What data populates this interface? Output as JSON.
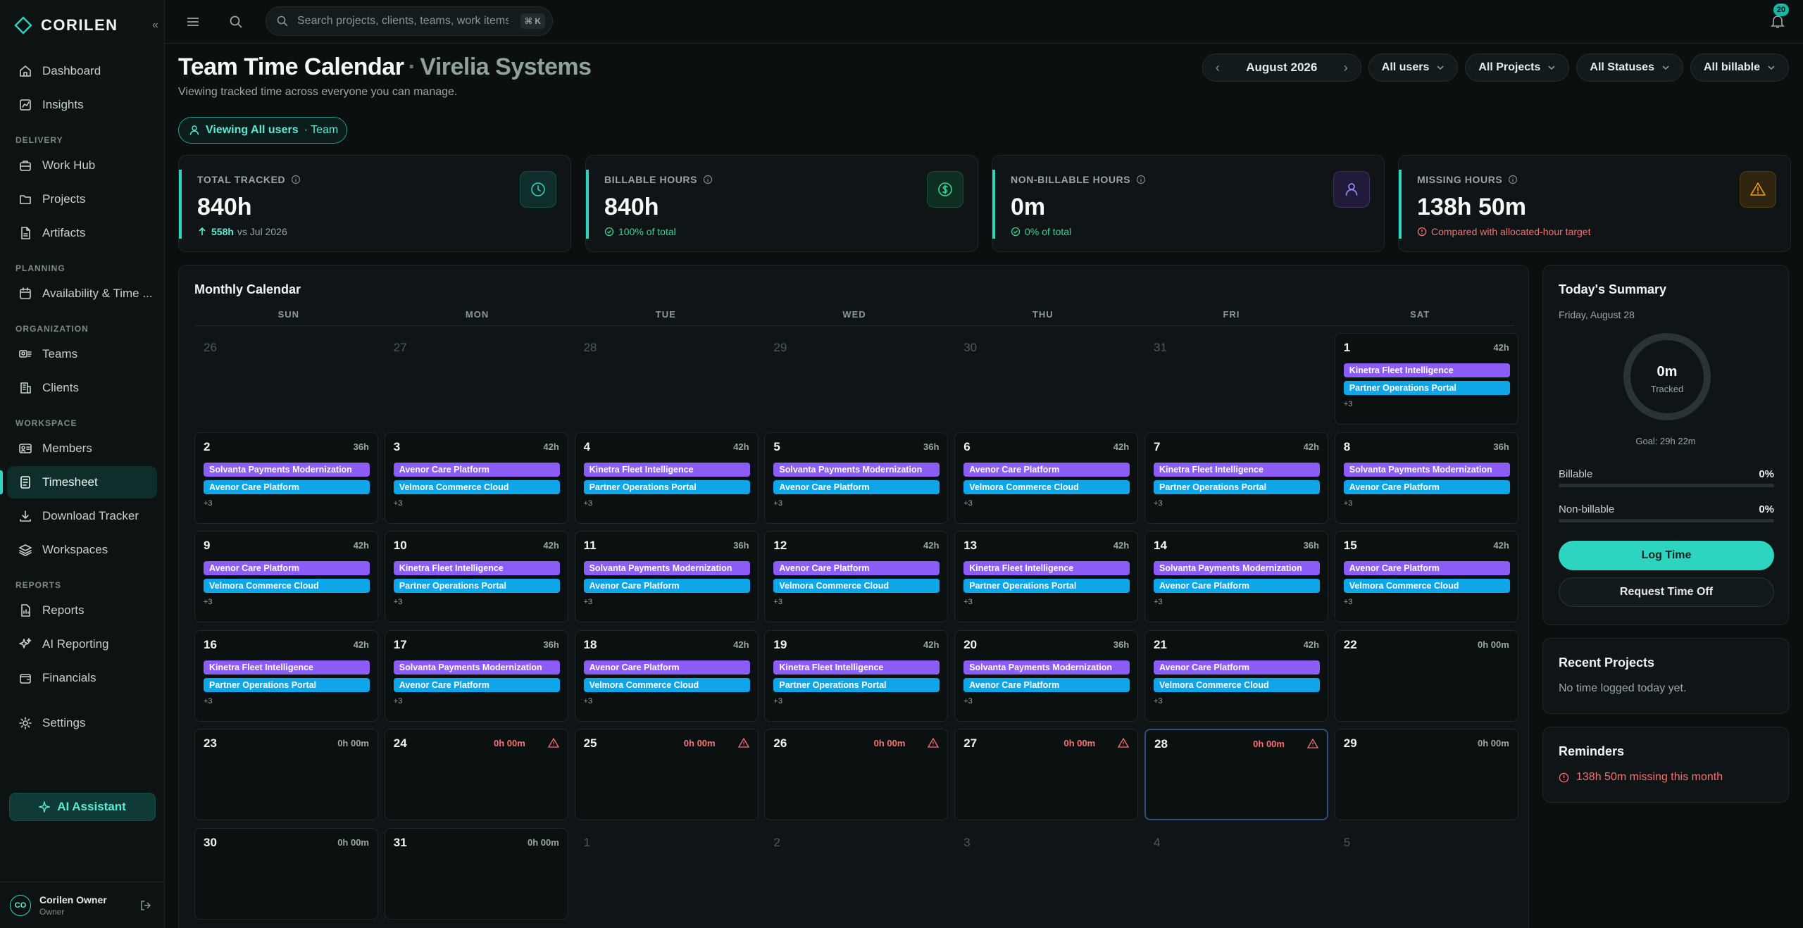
{
  "brand": {
    "name": "CORILEN"
  },
  "sidebar": {
    "top_items": [
      {
        "label": "Dashboard",
        "icon": "home-icon"
      },
      {
        "label": "Insights",
        "icon": "chart-icon"
      }
    ],
    "sections": [
      {
        "title": "DELIVERY",
        "items": [
          {
            "label": "Work Hub",
            "icon": "briefcase-icon"
          },
          {
            "label": "Projects",
            "icon": "folder-icon"
          },
          {
            "label": "Artifacts",
            "icon": "file-icon"
          }
        ]
      },
      {
        "title": "PLANNING",
        "items": [
          {
            "label": "Availability & Time ...",
            "icon": "calendar-icon"
          }
        ]
      },
      {
        "title": "ORGANIZATION",
        "items": [
          {
            "label": "Teams",
            "icon": "team-icon"
          },
          {
            "label": "Clients",
            "icon": "building-icon"
          }
        ]
      },
      {
        "title": "WORKSPACE",
        "items": [
          {
            "label": "Members",
            "icon": "id-card-icon"
          },
          {
            "label": "Timesheet",
            "icon": "timesheet-icon",
            "active": true
          },
          {
            "label": "Download Tracker",
            "icon": "download-icon"
          },
          {
            "label": "Workspaces",
            "icon": "layers-icon"
          }
        ]
      },
      {
        "title": "REPORTS",
        "items": [
          {
            "label": "Reports",
            "icon": "report-icon"
          },
          {
            "label": "AI Reporting",
            "icon": "sparkle-icon"
          },
          {
            "label": "Financials",
            "icon": "wallet-icon"
          }
        ]
      }
    ],
    "settings_label": "Settings",
    "ai_assistant_label": "AI Assistant",
    "user": {
      "initials": "CO",
      "name": "Corilen Owner",
      "role": "Owner"
    }
  },
  "topbar": {
    "search_placeholder": "Search projects, clients, teams, work items",
    "shortcut": "⌘ K",
    "notification_count": "20"
  },
  "header": {
    "title": "Team Time Calendar",
    "separator": "·",
    "org": "Virelia Systems",
    "subtitle": "Viewing tracked time across everyone you can manage.",
    "viewing_label": "Viewing All users",
    "viewing_scope": "· Team"
  },
  "filters": {
    "month": "August 2026",
    "users": "All users",
    "projects": "All Projects",
    "statuses": "All Statuses",
    "billable": "All billable"
  },
  "stats": [
    {
      "label": "TOTAL TRACKED",
      "value": "840h",
      "foot_strong": "558h",
      "foot": "vs Jul 2026",
      "foot_color": "#5eead4",
      "icon": "clock-icon",
      "icon_bg": "#0f2e2b",
      "icon_color": "#2dd4bf"
    },
    {
      "label": "BILLABLE HOURS",
      "value": "840h",
      "foot_strong": "",
      "foot": "100% of total",
      "foot_color": "#34d399",
      "icon": "dollar-icon",
      "icon_bg": "#0f2e22",
      "icon_color": "#34d399"
    },
    {
      "label": "NON-BILLABLE HOURS",
      "value": "0m",
      "foot_strong": "",
      "foot": "0% of total",
      "foot_color": "#34d399",
      "icon": "user-icon",
      "icon_bg": "#221a3a",
      "icon_color": "#a78bfa"
    },
    {
      "label": "MISSING HOURS",
      "value": "138h 50m",
      "foot_strong": "",
      "foot": "Compared with allocated-hour target",
      "foot_color": "#f87171",
      "icon": "warning-icon",
      "icon_bg": "#2e2410",
      "icon_color": "#f59e0b"
    }
  ],
  "calendar": {
    "title": "Monthly Calendar",
    "weekdays": [
      "SUN",
      "MON",
      "TUE",
      "WED",
      "THU",
      "FRI",
      "SAT"
    ],
    "days": [
      {
        "n": "26",
        "type": "empty"
      },
      {
        "n": "27",
        "type": "empty"
      },
      {
        "n": "28",
        "type": "empty"
      },
      {
        "n": "29",
        "type": "empty"
      },
      {
        "n": "30",
        "type": "empty"
      },
      {
        "n": "31",
        "type": "empty"
      },
      {
        "n": "1",
        "h": "42h",
        "p": "Kinetra Fleet Intelligence",
        "b": "Partner Operations Portal",
        "more": "+3"
      },
      {
        "n": "2",
        "h": "36h",
        "p": "Solvanta Payments Modernization",
        "b": "Avenor Care Platform",
        "more": "+3"
      },
      {
        "n": "3",
        "h": "42h",
        "p": "Avenor Care Platform",
        "b": "Velmora Commerce Cloud",
        "more": "+3"
      },
      {
        "n": "4",
        "h": "42h",
        "p": "Kinetra Fleet Intelligence",
        "b": "Partner Operations Portal",
        "more": "+3"
      },
      {
        "n": "5",
        "h": "36h",
        "p": "Solvanta Payments Modernization",
        "b": "Avenor Care Platform",
        "more": "+3"
      },
      {
        "n": "6",
        "h": "42h",
        "p": "Avenor Care Platform",
        "b": "Velmora Commerce Cloud",
        "more": "+3"
      },
      {
        "n": "7",
        "h": "42h",
        "p": "Kinetra Fleet Intelligence",
        "b": "Partner Operations Portal",
        "more": "+3"
      },
      {
        "n": "8",
        "h": "36h",
        "p": "Solvanta Payments Modernization",
        "b": "Avenor Care Platform",
        "more": "+3"
      },
      {
        "n": "9",
        "h": "42h",
        "p": "Avenor Care Platform",
        "b": "Velmora Commerce Cloud",
        "more": "+3"
      },
      {
        "n": "10",
        "h": "42h",
        "p": "Kinetra Fleet Intelligence",
        "b": "Partner Operations Portal",
        "more": "+3"
      },
      {
        "n": "11",
        "h": "36h",
        "p": "Solvanta Payments Modernization",
        "b": "Avenor Care Platform",
        "more": "+3"
      },
      {
        "n": "12",
        "h": "42h",
        "p": "Avenor Care Platform",
        "b": "Velmora Commerce Cloud",
        "more": "+3"
      },
      {
        "n": "13",
        "h": "42h",
        "p": "Kinetra Fleet Intelligence",
        "b": "Partner Operations Portal",
        "more": "+3"
      },
      {
        "n": "14",
        "h": "36h",
        "p": "Solvanta Payments Modernization",
        "b": "Avenor Care Platform",
        "more": "+3"
      },
      {
        "n": "15",
        "h": "42h",
        "p": "Avenor Care Platform",
        "b": "Velmora Commerce Cloud",
        "more": "+3"
      },
      {
        "n": "16",
        "h": "42h",
        "p": "Kinetra Fleet Intelligence",
        "b": "Partner Operations Portal",
        "more": "+3"
      },
      {
        "n": "17",
        "h": "36h",
        "p": "Solvanta Payments Modernization",
        "b": "Avenor Care Platform",
        "more": "+3"
      },
      {
        "n": "18",
        "h": "42h",
        "p": "Avenor Care Platform",
        "b": "Velmora Commerce Cloud",
        "more": "+3"
      },
      {
        "n": "19",
        "h": "42h",
        "p": "Kinetra Fleet Intelligence",
        "b": "Partner Operations Portal",
        "more": "+3"
      },
      {
        "n": "20",
        "h": "36h",
        "p": "Solvanta Payments Modernization",
        "b": "Avenor Care Platform",
        "more": "+3"
      },
      {
        "n": "21",
        "h": "42h",
        "p": "Avenor Care Platform",
        "b": "Velmora Commerce Cloud",
        "more": "+3"
      },
      {
        "n": "22",
        "h": "0h 00m"
      },
      {
        "n": "23",
        "h": "0h 00m"
      },
      {
        "n": "24",
        "h": "0h 00m",
        "missing": true
      },
      {
        "n": "25",
        "h": "0h 00m",
        "missing": true
      },
      {
        "n": "26",
        "h": "0h 00m",
        "missing": true
      },
      {
        "n": "27",
        "h": "0h 00m",
        "missing": true
      },
      {
        "n": "28",
        "h": "0h 00m",
        "missing": true,
        "today": true
      },
      {
        "n": "29",
        "h": "0h 00m"
      },
      {
        "n": "30",
        "h": "0h 00m"
      },
      {
        "n": "31",
        "h": "0h 00m"
      },
      {
        "n": "1",
        "type": "empty"
      },
      {
        "n": "2",
        "type": "empty"
      },
      {
        "n": "3",
        "type": "empty"
      },
      {
        "n": "4",
        "type": "empty"
      },
      {
        "n": "5",
        "type": "empty"
      }
    ]
  },
  "summary": {
    "title": "Today's Summary",
    "date": "Friday, August 28",
    "tracked_value": "0m",
    "tracked_label": "Tracked",
    "goal": "Goal: 29h 22m",
    "billable_label": "Billable",
    "billable_pct": "0%",
    "billable_fraction": 0,
    "nonbillable_label": "Non-billable",
    "nonbillable_pct": "0%",
    "nonbillable_fraction": 0,
    "log_time_label": "Log Time",
    "time_off_label": "Request Time Off"
  },
  "recent": {
    "title": "Recent Projects",
    "empty": "No time logged today yet."
  },
  "reminders": {
    "title": "Reminders",
    "items": [
      "138h 50m missing this month"
    ]
  }
}
